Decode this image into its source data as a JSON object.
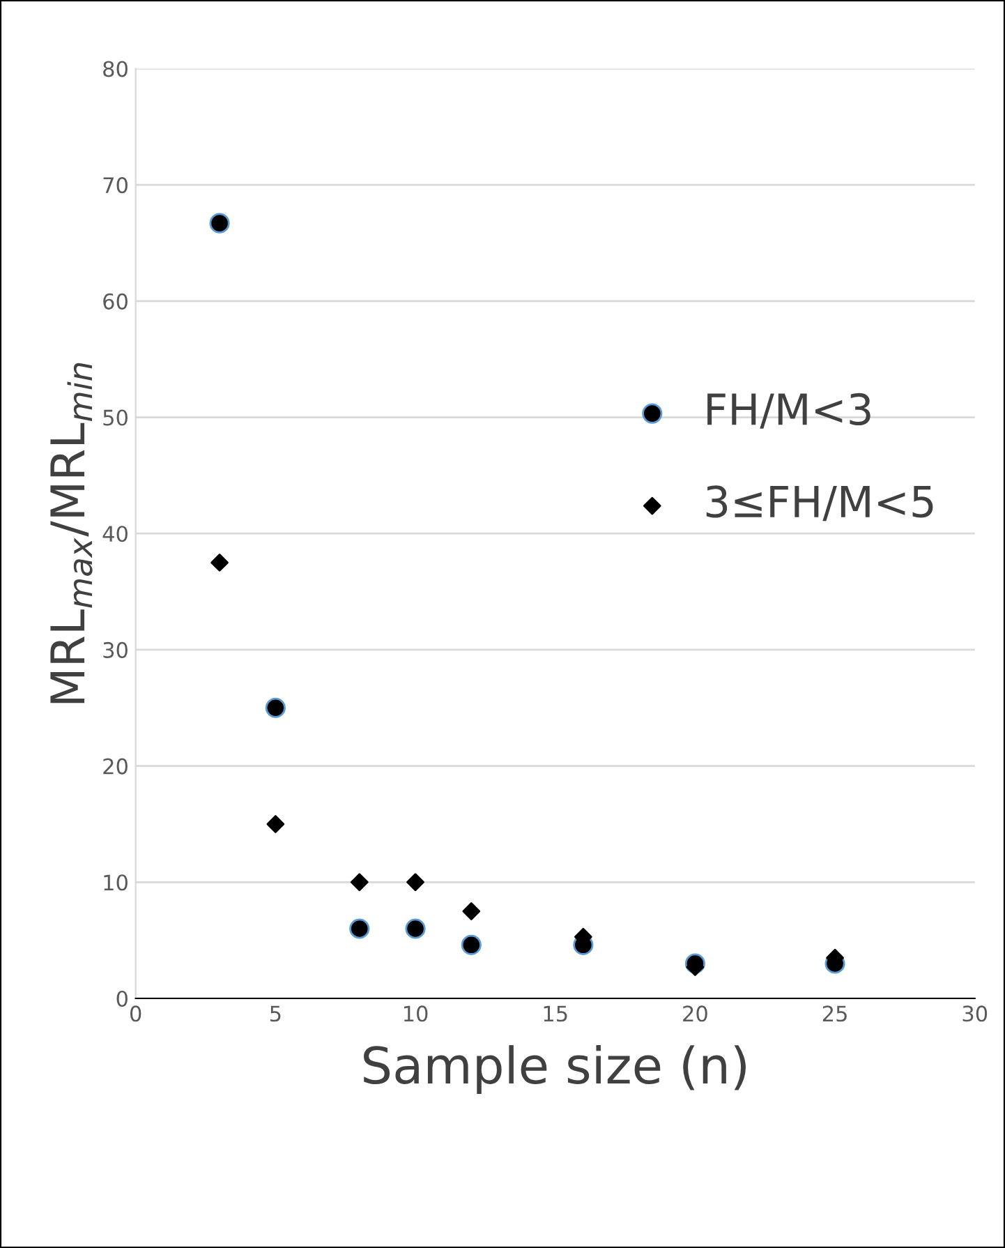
{
  "chart_data": {
    "type": "scatter",
    "xlabel": "Sample size (n)",
    "ylabel": "MRL$_{max}$/MRL$_{min}$",
    "x": [
      3,
      5,
      8,
      10,
      12,
      16,
      20,
      25
    ],
    "series": [
      {
        "name": "FH/M<3",
        "color": "#000000",
        "marker": "circle",
        "values": [
          66.7,
          25,
          6,
          6,
          4.6,
          4.6,
          3,
          3
        ]
      },
      {
        "name": "3≤FH/M<5",
        "color": "#000000",
        "marker": "diamond",
        "values": [
          37.5,
          15,
          10,
          10,
          7.5,
          5.3,
          2.7,
          3.5
        ]
      }
    ],
    "xlim": [
      0,
      30
    ],
    "xticks": [
      0,
      5,
      10,
      15,
      20,
      25,
      30
    ],
    "ylim": [
      0,
      80
    ],
    "yticks": [
      0,
      10,
      20,
      30,
      40,
      50,
      60,
      70,
      80
    ],
    "grid": "y",
    "legend": "right"
  }
}
